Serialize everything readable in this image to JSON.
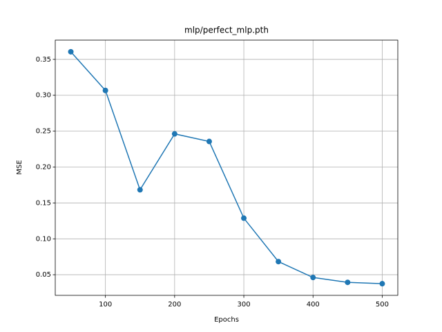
{
  "chart_data": {
    "type": "line",
    "title": "mlp/perfect_mlp.pth",
    "x_label": "Epochs",
    "y_label": "MSE",
    "x": [
      50,
      100,
      150,
      200,
      250,
      300,
      350,
      400,
      450,
      500
    ],
    "series": [
      {
        "name": "MSE",
        "color": "#1f77b4",
        "values": [
          0.3606,
          0.3067,
          0.1683,
          0.2462,
          0.2356,
          0.1288,
          0.0683,
          0.0462,
          0.0394,
          0.0375
        ]
      }
    ],
    "xlim": [
      27.5,
      522.5
    ],
    "xticks": [
      100,
      200,
      300,
      400,
      500
    ],
    "ylim": [
      0.0213,
      0.3768
    ],
    "yticks": [
      0.05,
      {
        "value": 0.1,
        "label": "0.10"
      },
      0.15,
      {
        "value": 0.2,
        "label": "0.20"
      },
      0.25,
      {
        "value": 0.3,
        "label": "0.30"
      },
      0.35
    ],
    "grid": true,
    "markers": true
  }
}
